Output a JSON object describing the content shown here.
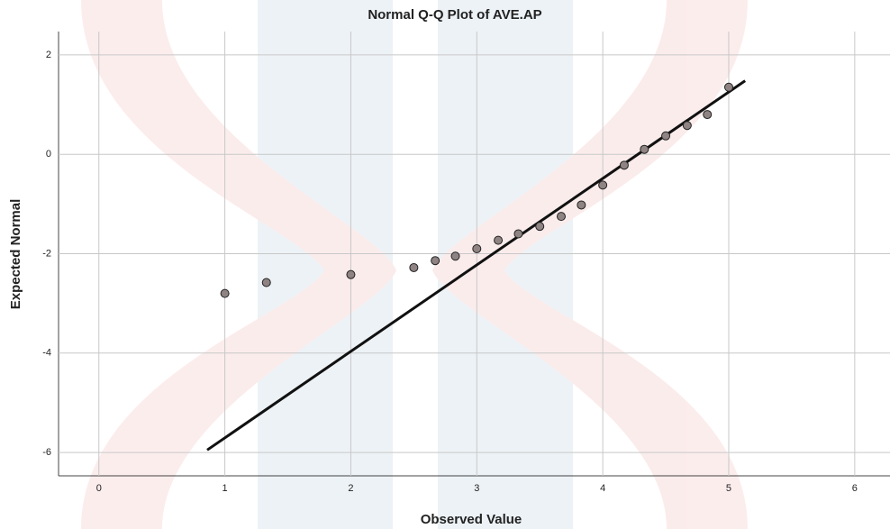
{
  "chart_data": {
    "type": "scatter",
    "title": "Normal Q-Q Plot of AVE.AP",
    "x_label": "Observed Value",
    "y_label": "Expected Normal",
    "x": [
      1,
      1.33,
      2,
      2.5,
      2.67,
      2.83,
      3,
      3.17,
      3.33,
      3.5,
      3.67,
      3.83,
      4,
      4.17,
      4.33,
      4.5,
      4.67,
      4.83,
      5
    ],
    "values": [
      -2.8,
      -2.58,
      -2.42,
      -2.28,
      -2.14,
      -2.05,
      -1.9,
      -1.73,
      -1.6,
      -1.45,
      -1.25,
      -1.02,
      -0.62,
      -0.22,
      0.1,
      0.37,
      0.58,
      0.8,
      1.35
    ],
    "color": "#8f8383",
    "reference_line": {
      "x": [
        0.86,
        5.13
      ],
      "y": [
        -5.95,
        1.48
      ],
      "color": "#111111"
    },
    "xlim": [
      -0.32,
      6.28
    ],
    "ylim": [
      -6.47,
      2.47
    ],
    "xticks": [
      0,
      1,
      2,
      3,
      4,
      5,
      6
    ],
    "yticks": [
      2,
      0,
      -2,
      -4,
      -6
    ],
    "grid": true
  }
}
